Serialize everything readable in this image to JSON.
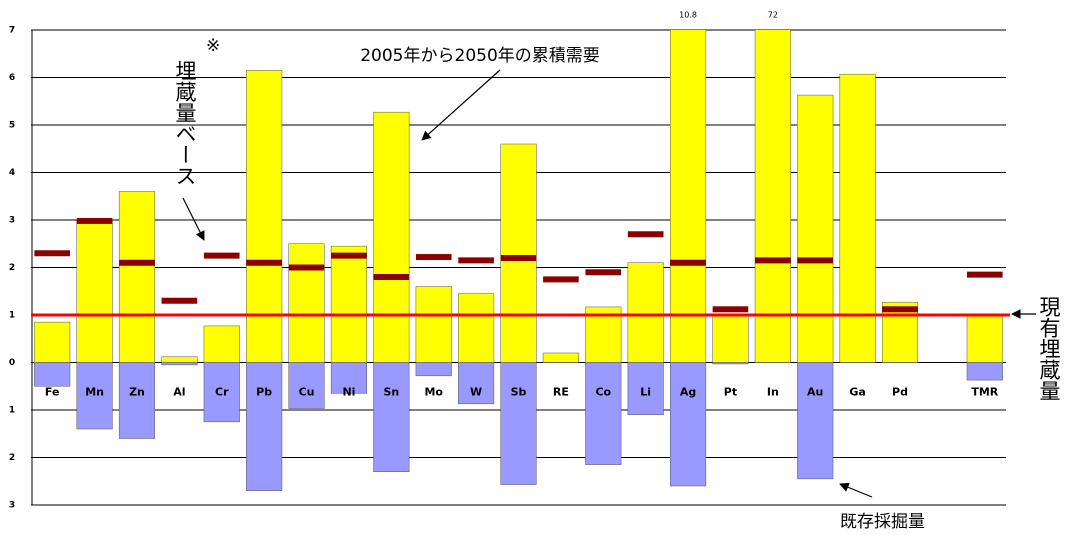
{
  "chart_data": {
    "type": "bar",
    "categories": [
      "Fe",
      "Mn",
      "Zn",
      "Al",
      "Cr",
      "Pb",
      "Cu",
      "Ni",
      "Sn",
      "Mo",
      "W",
      "Sb",
      "RE",
      "Co",
      "Li",
      "Ag",
      "Pt",
      "In",
      "Au",
      "Ga",
      "Pd",
      null,
      "TMR"
    ],
    "series": [
      {
        "kind": "bar",
        "color": "#ffff00",
        "values": [
          0.85,
          3.0,
          3.6,
          0.12,
          0.77,
          6.15,
          2.5,
          2.45,
          5.27,
          1.6,
          1.45,
          4.6,
          0.2,
          1.17,
          2.1,
          10.8,
          1.0,
          72,
          5.63,
          6.07,
          1.27,
          null,
          1.0
        ],
        "value_labels": [
          null,
          null,
          null,
          null,
          null,
          null,
          null,
          null,
          null,
          null,
          null,
          null,
          null,
          null,
          null,
          "10.8",
          null,
          "72",
          null,
          null,
          null,
          null,
          null
        ]
      },
      {
        "kind": "bar",
        "color": "#9999ff",
        "values": [
          -0.5,
          -1.4,
          -1.6,
          -0.05,
          -1.25,
          -2.7,
          -0.97,
          -0.65,
          -2.3,
          -0.28,
          -0.87,
          -2.57,
          null,
          -2.15,
          -1.1,
          -2.6,
          -0.03,
          null,
          -2.45,
          null,
          null,
          null,
          -0.37
        ]
      },
      {
        "kind": "marker",
        "color": "#8b0000",
        "values": [
          2.3,
          2.98,
          2.1,
          1.3,
          2.25,
          2.1,
          2.0,
          2.25,
          1.8,
          2.22,
          2.15,
          2.2,
          1.75,
          1.9,
          2.7,
          2.1,
          1.12,
          2.15,
          2.15,
          null,
          1.12,
          null,
          1.85
        ]
      }
    ],
    "reference_line": {
      "value": 1,
      "color": "#ff0000"
    },
    "ylim": [
      -3,
      7
    ],
    "yticks": [
      {
        "value": -3,
        "label": "3"
      },
      {
        "value": -2,
        "label": "2"
      },
      {
        "value": -1,
        "label": "1"
      },
      0,
      1,
      2,
      3,
      4,
      5,
      6,
      7
    ],
    "grid": true,
    "annotations": [
      "2005年から2050年の累積需要",
      "埋蔵量ベース",
      "※",
      "現有埋蔵量",
      "既存採掘量"
    ]
  }
}
